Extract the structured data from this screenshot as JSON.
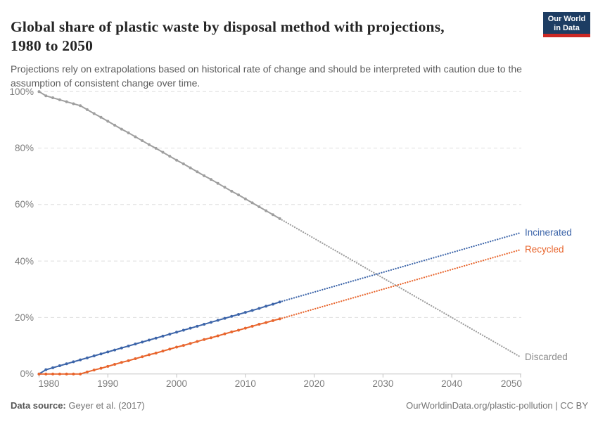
{
  "header": {
    "title_line1": "Global share of plastic waste by disposal method with projections,",
    "title_line2": "1980 to 2050",
    "subtitle": "Projections rely on extrapolations based on historical rate of change and should be interpreted with caution due to the assumption of consistent change over time.",
    "logo": {
      "line1": "Our World",
      "line2": "in Data",
      "bg_color": "#1d3d63",
      "accent_color": "#cb2824"
    }
  },
  "chart_data": {
    "type": "line",
    "title": "Global share of plastic waste by disposal method with projections, 1980 to 2050",
    "xlabel": "",
    "ylabel": "",
    "xlim": [
      1980,
      2050
    ],
    "ylim": [
      0,
      100
    ],
    "grid": "horizontal-dashed",
    "legend_position": "end-of-line-labels",
    "projection_style": "dotted",
    "x_tick_values": [
      1980,
      1990,
      2000,
      2010,
      2020,
      2030,
      2040,
      2050
    ],
    "x_tick_labels": [
      "1980",
      "1990",
      "2000",
      "2010",
      "2020",
      "2030",
      "2040",
      "2050"
    ],
    "y_tick_values": [
      0,
      20,
      40,
      60,
      80,
      100
    ],
    "y_tick_labels": [
      "0%",
      "20%",
      "40%",
      "60%",
      "80%",
      "100%"
    ],
    "years_historical": [
      1980,
      1981,
      1982,
      1983,
      1984,
      1985,
      1986,
      1987,
      1988,
      1989,
      1990,
      1991,
      1992,
      1993,
      1994,
      1995,
      1996,
      1997,
      1998,
      1999,
      2000,
      2001,
      2002,
      2003,
      2004,
      2005,
      2006,
      2007,
      2008,
      2009,
      2010,
      2011,
      2012,
      2013,
      2014,
      2015
    ],
    "years_projection": [
      2015,
      2016,
      2017,
      2018,
      2019,
      2020,
      2021,
      2022,
      2023,
      2024,
      2025,
      2026,
      2027,
      2028,
      2029,
      2030,
      2031,
      2032,
      2033,
      2034,
      2035,
      2036,
      2037,
      2038,
      2039,
      2040,
      2041,
      2042,
      2043,
      2044,
      2045,
      2046,
      2047,
      2048,
      2049,
      2050
    ],
    "series": [
      {
        "name": "Discarded",
        "color": "#9e9e9e",
        "label_color": "#8b8b8b",
        "historical": [
          100,
          98.5,
          97.8,
          97.1,
          96.4,
          95.7,
          95.0,
          93.6,
          92.2,
          90.9,
          89.5,
          88.1,
          86.7,
          85.4,
          84.0,
          82.6,
          81.2,
          79.9,
          78.5,
          77.1,
          75.7,
          74.4,
          73.0,
          71.6,
          70.2,
          68.9,
          67.5,
          66.1,
          64.7,
          63.4,
          62.0,
          60.6,
          59.2,
          57.8,
          56.4,
          55.0
        ],
        "projection": [
          55.0,
          53.6,
          52.2,
          50.8,
          49.4,
          48.0,
          46.6,
          45.2,
          43.8,
          42.4,
          41.0,
          39.6,
          38.2,
          36.8,
          35.4,
          34.0,
          32.6,
          31.2,
          29.8,
          28.4,
          27.0,
          25.6,
          24.2,
          22.8,
          21.4,
          20.0,
          18.6,
          17.2,
          15.8,
          14.4,
          13.0,
          11.6,
          10.2,
          8.8,
          7.4,
          6.0
        ]
      },
      {
        "name": "Incinerated",
        "color": "#3d65a9",
        "label_color": "#3d65a9",
        "historical": [
          0,
          1.5,
          2.2,
          2.9,
          3.6,
          4.3,
          5.0,
          5.7,
          6.4,
          7.1,
          7.8,
          8.5,
          9.2,
          9.9,
          10.6,
          11.3,
          12.0,
          12.7,
          13.4,
          14.1,
          14.8,
          15.5,
          16.2,
          16.9,
          17.6,
          18.3,
          19.0,
          19.7,
          20.4,
          21.1,
          21.8,
          22.5,
          23.2,
          24.0,
          24.7,
          25.5
        ],
        "projection": [
          25.5,
          26.2,
          26.9,
          27.6,
          28.3,
          29.0,
          29.7,
          30.4,
          31.1,
          31.8,
          32.5,
          33.2,
          33.9,
          34.6,
          35.3,
          36.0,
          36.7,
          37.4,
          38.1,
          38.8,
          39.5,
          40.2,
          40.9,
          41.6,
          42.3,
          43.0,
          43.7,
          44.4,
          45.1,
          45.8,
          46.5,
          47.2,
          47.9,
          48.6,
          49.3,
          50.0
        ]
      },
      {
        "name": "Recycled",
        "color": "#e8652d",
        "label_color": "#e8652d",
        "historical": [
          0,
          0,
          0,
          0,
          0,
          0,
          0,
          0.7,
          1.4,
          2.0,
          2.7,
          3.4,
          4.1,
          4.7,
          5.4,
          6.1,
          6.8,
          7.4,
          8.1,
          8.8,
          9.5,
          10.1,
          10.8,
          11.5,
          12.2,
          12.8,
          13.5,
          14.2,
          14.9,
          15.5,
          16.2,
          16.9,
          17.6,
          18.2,
          18.9,
          19.5
        ],
        "projection": [
          19.5,
          20.2,
          20.9,
          21.6,
          22.3,
          23.0,
          23.7,
          24.4,
          25.1,
          25.8,
          26.5,
          27.2,
          27.9,
          28.6,
          29.3,
          30.0,
          30.7,
          31.4,
          32.1,
          32.8,
          33.5,
          34.2,
          34.9,
          35.6,
          36.3,
          37.0,
          37.7,
          38.4,
          39.1,
          39.8,
          40.5,
          41.2,
          41.9,
          42.6,
          43.3,
          44.0
        ]
      }
    ]
  },
  "footer": {
    "source_label": "Data source:",
    "source_value": "Geyer et al. (2017)",
    "attribution": "OurWorldinData.org/plastic-pollution | CC BY"
  }
}
